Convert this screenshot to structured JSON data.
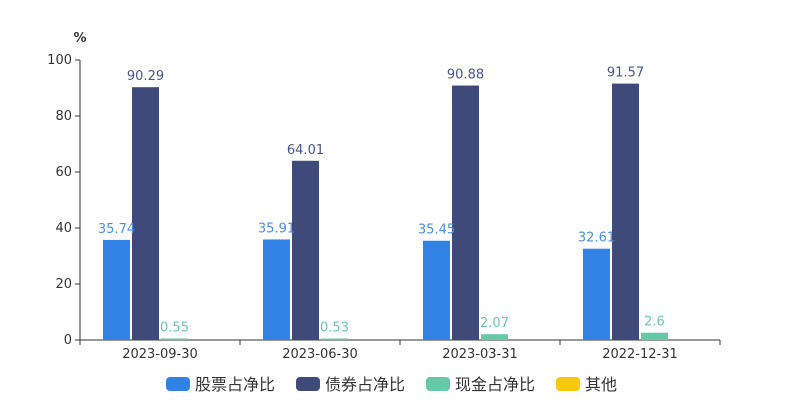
{
  "chart_data": {
    "type": "bar",
    "ylabel": "%",
    "ylim": [
      0,
      100
    ],
    "yticks": [
      0,
      20,
      40,
      60,
      80,
      100
    ],
    "grid": false,
    "legend_position": "bottom",
    "categories": [
      "2023-09-30",
      "2023-06-30",
      "2023-03-31",
      "2022-12-31"
    ],
    "series": [
      {
        "name": "股票占净比",
        "color": "#3182e5",
        "label_color": "#4a8fe0",
        "values": [
          35.74,
          35.91,
          35.45,
          32.61
        ],
        "labels": [
          "35.74",
          "35.91",
          "35.45",
          "32.61"
        ]
      },
      {
        "name": "债券占净比",
        "color": "#3f4a7b",
        "label_color": "#4a5587",
        "values": [
          90.29,
          64.01,
          90.88,
          91.57
        ],
        "labels": [
          "90.29",
          "64.01",
          "90.88",
          "91.57"
        ]
      },
      {
        "name": "现金占净比",
        "color": "#65c8a6",
        "label_color": "#6cc9a7",
        "values": [
          0.55,
          0.53,
          2.07,
          2.6
        ],
        "labels": [
          "0.55",
          "0.53",
          "2.07",
          "2.6"
        ]
      },
      {
        "name": "其他",
        "color": "#f6c90f",
        "label_color": "#f6c90f",
        "values": [
          null,
          null,
          null,
          null
        ],
        "labels": [
          null,
          null,
          null,
          null
        ]
      }
    ]
  }
}
